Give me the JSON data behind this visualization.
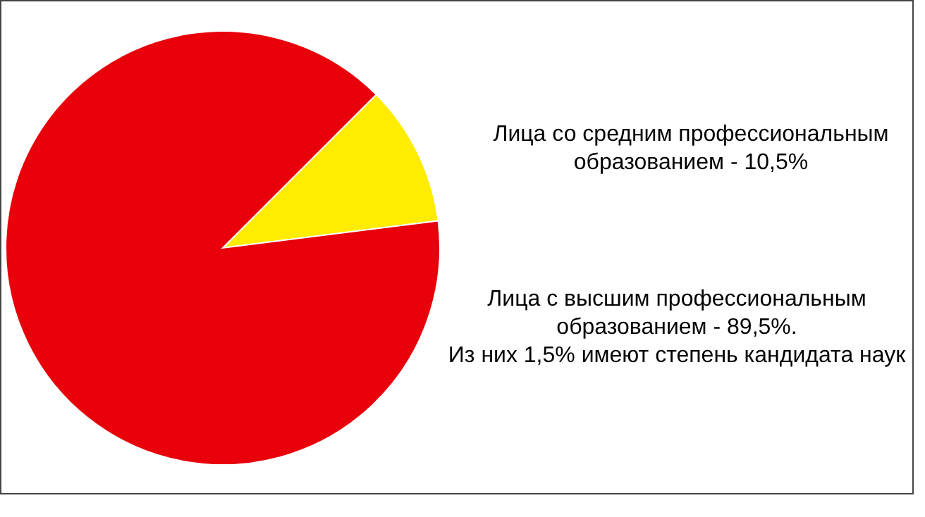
{
  "chart_data": {
    "type": "pie",
    "categories": [
      "Лица со средним профессиональным образованием",
      "Лица с высшим профессиональным образованием"
    ],
    "values": [
      10.5,
      89.5
    ],
    "colors": [
      "#ffec00",
      "#e8000a"
    ],
    "value_labels": [
      "10,5%",
      "89,5%."
    ],
    "annotations": [
      "Из них 1,5% имеют степень кандидата наук"
    ]
  }
}
